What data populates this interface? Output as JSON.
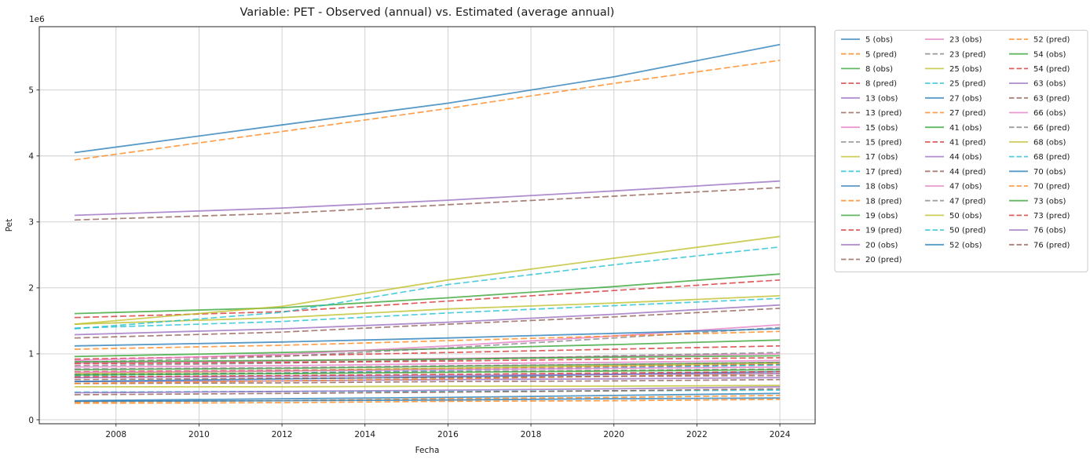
{
  "chart_data": {
    "type": "line",
    "title": "Variable: PET - Observed (annual) vs. Estimated (average annual)",
    "xlabel": "Fecha",
    "ylabel": "Pet",
    "y_offset_text": "1e6",
    "grid": true,
    "legend_position": "outside-right",
    "legend_columns": 3,
    "legend_border_color": "#cccccc",
    "x_ticks": [
      2008,
      2010,
      2012,
      2014,
      2016,
      2018,
      2020,
      2022,
      2024
    ],
    "y_ticks": [
      0,
      1,
      2,
      3,
      4,
      5
    ],
    "xlim": [
      2006.15,
      2024.85
    ],
    "ylim_1e6": [
      -0.06,
      5.96
    ],
    "values_unit": "1e6",
    "x": [
      2007,
      2012,
      2016,
      2020,
      2024
    ],
    "line_alpha": 0.75,
    "series": [
      {
        "name": "5 (obs)",
        "station": "5",
        "kind": "obs",
        "color": "#1f77b4",
        "style": "solid",
        "values": [
          4.05,
          4.47,
          4.8,
          5.2,
          5.69
        ]
      },
      {
        "name": "5 (pred)",
        "station": "5",
        "kind": "pred",
        "color": "#ff7f0e",
        "style": "dashed",
        "values": [
          3.94,
          4.37,
          4.72,
          5.1,
          5.45
        ]
      },
      {
        "name": "8 (obs)",
        "station": "8",
        "kind": "obs",
        "color": "#2ca02c",
        "style": "solid",
        "values": [
          0.96,
          1.02,
          1.08,
          1.14,
          1.21
        ]
      },
      {
        "name": "8 (pred)",
        "station": "8",
        "kind": "pred",
        "color": "#d62728",
        "style": "dashed",
        "values": [
          0.92,
          0.97,
          1.02,
          1.07,
          1.12
        ]
      },
      {
        "name": "13 (obs)",
        "station": "13",
        "kind": "obs",
        "color": "#9467bd",
        "style": "solid",
        "values": [
          3.1,
          3.21,
          3.33,
          3.47,
          3.62
        ]
      },
      {
        "name": "13 (pred)",
        "station": "13",
        "kind": "pred",
        "color": "#8c564b",
        "style": "dashed",
        "values": [
          3.03,
          3.13,
          3.26,
          3.39,
          3.52
        ]
      },
      {
        "name": "15 (obs)",
        "station": "15",
        "kind": "obs",
        "color": "#e377c2",
        "style": "solid",
        "values": [
          0.9,
          0.99,
          1.12,
          1.27,
          1.44
        ]
      },
      {
        "name": "15 (pred)",
        "station": "15",
        "kind": "pred",
        "color": "#7f7f7f",
        "style": "dashed",
        "values": [
          0.87,
          0.96,
          1.09,
          1.24,
          1.4
        ]
      },
      {
        "name": "17 (obs)",
        "station": "17",
        "kind": "obs",
        "color": "#bcbd22",
        "style": "solid",
        "values": [
          1.45,
          1.55,
          1.68,
          1.77,
          1.88
        ]
      },
      {
        "name": "17 (pred)",
        "station": "17",
        "kind": "pred",
        "color": "#17becf",
        "style": "dashed",
        "values": [
          1.39,
          1.49,
          1.62,
          1.73,
          1.84
        ]
      },
      {
        "name": "18 (obs)",
        "station": "18",
        "kind": "obs",
        "color": "#1f77b4",
        "style": "solid",
        "values": [
          1.12,
          1.18,
          1.24,
          1.31,
          1.38
        ]
      },
      {
        "name": "18 (pred)",
        "station": "18",
        "kind": "pred",
        "color": "#ff7f0e",
        "style": "dashed",
        "values": [
          1.07,
          1.13,
          1.2,
          1.27,
          1.34
        ]
      },
      {
        "name": "19 (obs)",
        "station": "19",
        "kind": "obs",
        "color": "#2ca02c",
        "style": "solid",
        "values": [
          0.76,
          0.78,
          0.81,
          0.84,
          0.87
        ]
      },
      {
        "name": "19 (pred)",
        "station": "19",
        "kind": "pred",
        "color": "#d62728",
        "style": "dashed",
        "values": [
          0.73,
          0.75,
          0.78,
          0.81,
          0.84
        ]
      },
      {
        "name": "20 (obs)",
        "station": "20",
        "kind": "obs",
        "color": "#9467bd",
        "style": "solid",
        "values": [
          0.58,
          0.59,
          0.61,
          0.62,
          0.64
        ]
      },
      {
        "name": "20 (pred)",
        "station": "20",
        "kind": "pred",
        "color": "#8c564b",
        "style": "dashed",
        "values": [
          0.55,
          0.56,
          0.58,
          0.59,
          0.61
        ]
      },
      {
        "name": "23 (obs)",
        "station": "23",
        "kind": "obs",
        "color": "#e377c2",
        "style": "solid",
        "values": [
          0.86,
          0.89,
          0.93,
          0.96,
          1.0
        ]
      },
      {
        "name": "23 (pred)",
        "station": "23",
        "kind": "pred",
        "color": "#7f7f7f",
        "style": "dashed",
        "values": [
          0.82,
          0.86,
          0.91,
          0.97,
          1.02
        ]
      },
      {
        "name": "25 (obs)",
        "station": "25",
        "kind": "obs",
        "color": "#bcbd22",
        "style": "solid",
        "values": [
          0.7,
          0.74,
          0.78,
          0.82,
          0.86
        ]
      },
      {
        "name": "25 (pred)",
        "station": "25",
        "kind": "pred",
        "color": "#17becf",
        "style": "dashed",
        "values": [
          0.67,
          0.71,
          0.75,
          0.79,
          0.83
        ]
      },
      {
        "name": "27 (obs)",
        "station": "27",
        "kind": "obs",
        "color": "#1f77b4",
        "style": "solid",
        "values": [
          0.58,
          0.62,
          0.65,
          0.69,
          0.73
        ]
      },
      {
        "name": "27 (pred)",
        "station": "27",
        "kind": "pred",
        "color": "#ff7f0e",
        "style": "dashed",
        "values": [
          0.55,
          0.59,
          0.62,
          0.66,
          0.7
        ]
      },
      {
        "name": "41 (obs)",
        "station": "41",
        "kind": "obs",
        "color": "#2ca02c",
        "style": "solid",
        "values": [
          1.61,
          1.7,
          1.85,
          2.02,
          2.21
        ]
      },
      {
        "name": "41 (pred)",
        "station": "41",
        "kind": "pred",
        "color": "#d62728",
        "style": "dashed",
        "values": [
          1.55,
          1.64,
          1.8,
          1.96,
          2.12
        ]
      },
      {
        "name": "44 (obs)",
        "station": "44",
        "kind": "obs",
        "color": "#9467bd",
        "style": "solid",
        "values": [
          0.64,
          0.66,
          0.67,
          0.69,
          0.7
        ]
      },
      {
        "name": "44 (pred)",
        "station": "44",
        "kind": "pred",
        "color": "#8c564b",
        "style": "dashed",
        "values": [
          0.61,
          0.63,
          0.64,
          0.66,
          0.67
        ]
      },
      {
        "name": "47 (obs)",
        "station": "47",
        "kind": "obs",
        "color": "#e377c2",
        "style": "solid",
        "values": [
          0.72,
          0.74,
          0.76,
          0.78,
          0.8
        ]
      },
      {
        "name": "47 (pred)",
        "station": "47",
        "kind": "pred",
        "color": "#7f7f7f",
        "style": "dashed",
        "values": [
          0.69,
          0.71,
          0.73,
          0.75,
          0.77
        ]
      },
      {
        "name": "50 (obs)",
        "station": "50",
        "kind": "obs",
        "color": "#bcbd22",
        "style": "solid",
        "values": [
          1.45,
          1.72,
          2.12,
          2.45,
          2.78
        ]
      },
      {
        "name": "50 (pred)",
        "station": "50",
        "kind": "pred",
        "color": "#17becf",
        "style": "dashed",
        "values": [
          1.38,
          1.63,
          2.05,
          2.35,
          2.62
        ]
      },
      {
        "name": "52 (obs)",
        "station": "52",
        "kind": "obs",
        "color": "#1f77b4",
        "style": "solid",
        "values": [
          0.29,
          0.32,
          0.34,
          0.37,
          0.4
        ]
      },
      {
        "name": "52 (pred)",
        "station": "52",
        "kind": "pred",
        "color": "#ff7f0e",
        "style": "dashed",
        "values": [
          0.27,
          0.29,
          0.32,
          0.34,
          0.37
        ]
      },
      {
        "name": "54 (obs)",
        "station": "54",
        "kind": "obs",
        "color": "#2ca02c",
        "style": "solid",
        "values": [
          0.68,
          0.7,
          0.72,
          0.74,
          0.76
        ]
      },
      {
        "name": "54 (pred)",
        "station": "54",
        "kind": "pred",
        "color": "#d62728",
        "style": "dashed",
        "values": [
          0.65,
          0.67,
          0.69,
          0.71,
          0.73
        ]
      },
      {
        "name": "63 (obs)",
        "station": "63",
        "kind": "obs",
        "color": "#9467bd",
        "style": "solid",
        "values": [
          1.29,
          1.38,
          1.48,
          1.6,
          1.74
        ]
      },
      {
        "name": "63 (pred)",
        "station": "63",
        "kind": "pred",
        "color": "#8c564b",
        "style": "dashed",
        "values": [
          1.24,
          1.33,
          1.45,
          1.56,
          1.69
        ]
      },
      {
        "name": "66 (obs)",
        "station": "66",
        "kind": "obs",
        "color": "#e377c2",
        "style": "solid",
        "values": [
          0.8,
          0.82,
          0.85,
          0.87,
          0.9
        ]
      },
      {
        "name": "66 (pred)",
        "station": "66",
        "kind": "pred",
        "color": "#7f7f7f",
        "style": "dashed",
        "values": [
          0.77,
          0.79,
          0.82,
          0.84,
          0.87
        ]
      },
      {
        "name": "68 (obs)",
        "station": "68",
        "kind": "obs",
        "color": "#bcbd22",
        "style": "solid",
        "values": [
          0.5,
          0.5,
          0.51,
          0.51,
          0.52
        ]
      },
      {
        "name": "68 (pred)",
        "station": "68",
        "kind": "pred",
        "color": "#17becf",
        "style": "dashed",
        "values": [
          0.42,
          0.43,
          0.43,
          0.44,
          0.45
        ]
      },
      {
        "name": "70 (obs)",
        "station": "70",
        "kind": "obs",
        "color": "#1f77b4",
        "style": "solid",
        "values": [
          0.28,
          0.29,
          0.3,
          0.32,
          0.33
        ]
      },
      {
        "name": "70 (pred)",
        "station": "70",
        "kind": "pred",
        "color": "#ff7f0e",
        "style": "dashed",
        "values": [
          0.25,
          0.26,
          0.28,
          0.29,
          0.31
        ]
      },
      {
        "name": "73 (obs)",
        "station": "73",
        "kind": "obs",
        "color": "#2ca02c",
        "style": "solid",
        "values": [
          0.88,
          0.9,
          0.92,
          0.95,
          0.97
        ]
      },
      {
        "name": "73 (pred)",
        "station": "73",
        "kind": "pred",
        "color": "#d62728",
        "style": "dashed",
        "values": [
          0.85,
          0.87,
          0.89,
          0.92,
          0.94
        ]
      },
      {
        "name": "76 (obs)",
        "station": "76",
        "kind": "obs",
        "color": "#9467bd",
        "style": "solid",
        "values": [
          0.41,
          0.43,
          0.45,
          0.47,
          0.5
        ]
      },
      {
        "name": "76 (pred)",
        "station": "76",
        "kind": "pred",
        "color": "#8c564b",
        "style": "dashed",
        "values": [
          0.38,
          0.4,
          0.42,
          0.44,
          0.47
        ]
      }
    ]
  }
}
